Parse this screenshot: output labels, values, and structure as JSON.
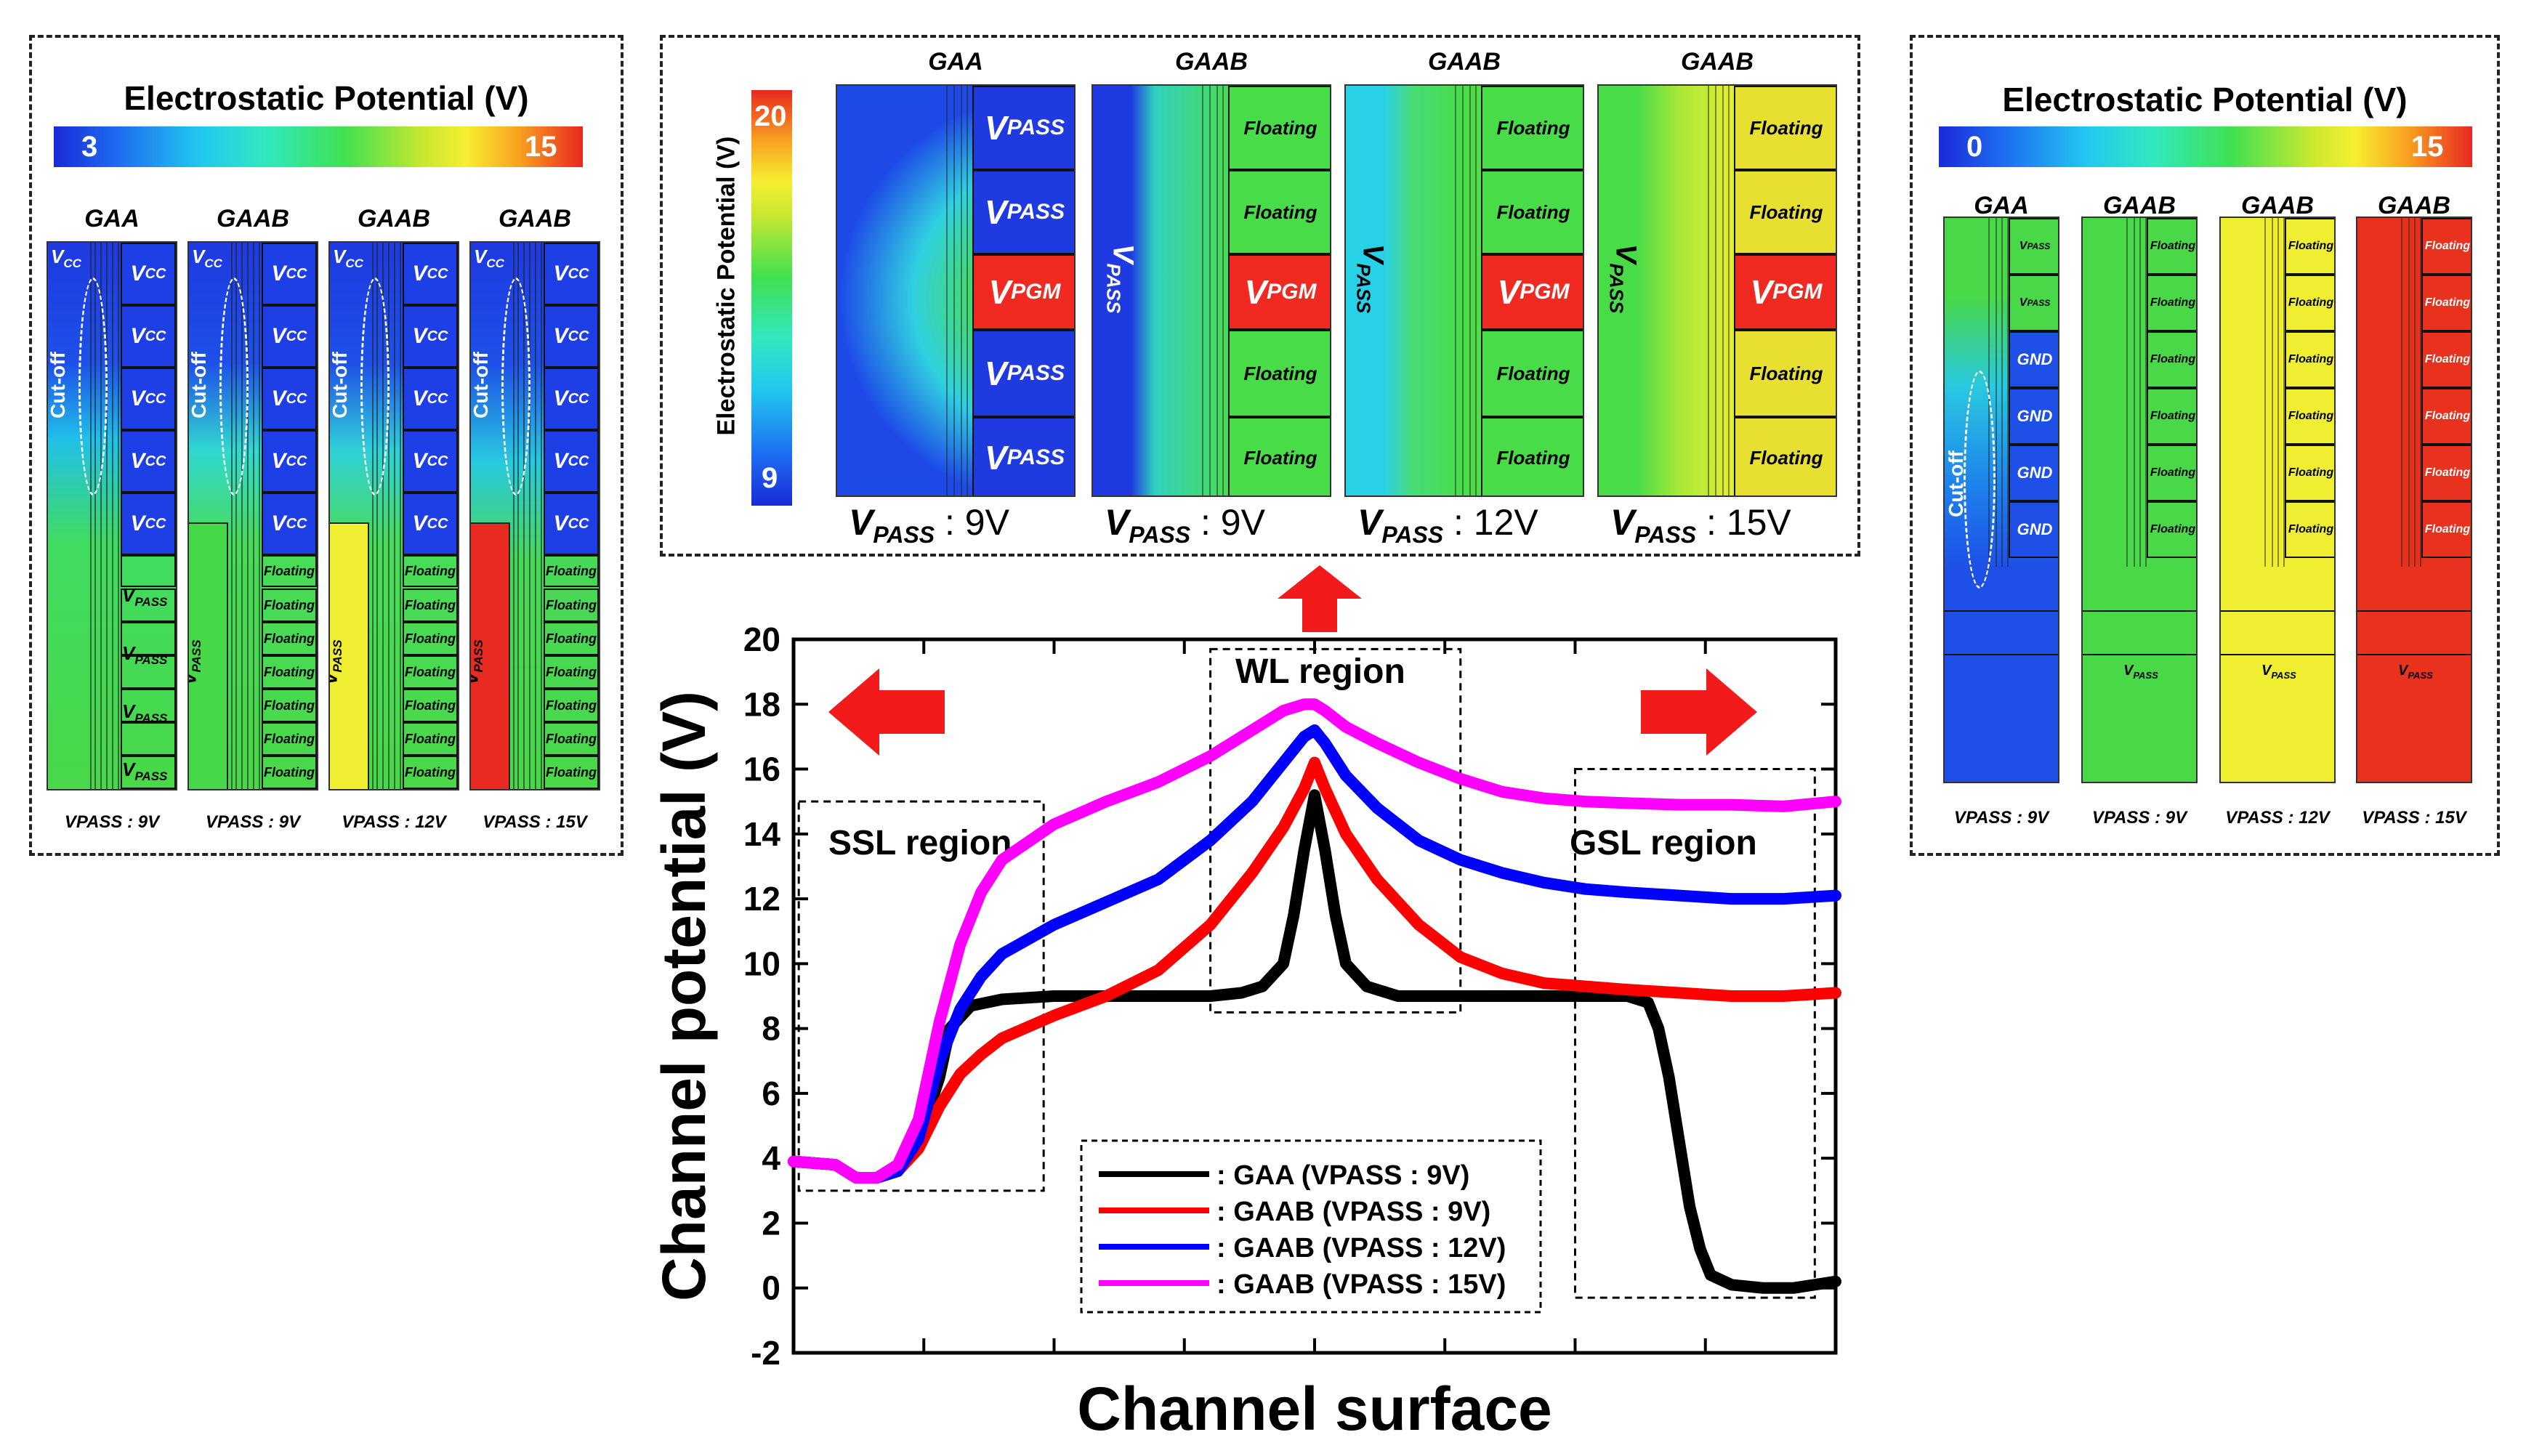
{
  "left_panel": {
    "title": "Electrostatic Potential (V)",
    "scale_min": "3",
    "scale_max": "15",
    "columns": [
      {
        "header": "GAA",
        "footer": "VPASS : 9V",
        "top_label": "VCC"
      },
      {
        "header": "GAAB",
        "footer": "VPASS : 9V",
        "top_label": "VCC"
      },
      {
        "header": "GAAB",
        "footer": "VPASS : 12V",
        "top_label": "VCC"
      },
      {
        "header": "GAAB",
        "footer": "VPASS : 15V",
        "top_label": "VCC"
      }
    ],
    "cutoff_label": "Cut-off",
    "vcc_label": "VCC",
    "vpass_label": "VPASS",
    "floating_label": "Floating"
  },
  "middle_panel": {
    "axis_title": "Electrostatic Potential (V)",
    "scale_max": "20",
    "scale_min": "9",
    "columns": [
      {
        "header": "GAA",
        "footer_v": "VPASS",
        "footer_val": " : 9V"
      },
      {
        "header": "GAAB",
        "footer_v": "VPASS",
        "footer_val": " : 9V"
      },
      {
        "header": "GAAB",
        "footer_v": "VPASS",
        "footer_val": " : 12V"
      },
      {
        "header": "GAAB",
        "footer_v": "VPASS",
        "footer_val": " : 15V"
      }
    ],
    "vpass_label": "VPASS",
    "vpgm_label": "VPGM",
    "floating_label": "Floating"
  },
  "right_panel": {
    "title": "Electrostatic Potential (V)",
    "scale_min": "0",
    "scale_max": "15",
    "columns": [
      {
        "header": "GAA",
        "footer": "VPASS : 9V"
      },
      {
        "header": "GAAB",
        "footer": "VPASS : 9V"
      },
      {
        "header": "GAAB",
        "footer": "VPASS : 12V"
      },
      {
        "header": "GAAB",
        "footer": "VPASS : 15V"
      }
    ],
    "vpass_label": "VPASS",
    "gnd_label": "GND",
    "floating_label": "Floating",
    "cutoff_label": "Cut-off"
  },
  "chart_data": {
    "type": "line",
    "title": "",
    "xlabel": "Channel surface",
    "ylabel": "Channel potential (V)",
    "xlim": [
      0,
      100
    ],
    "ylim": [
      -2,
      20
    ],
    "yticks": [
      "-2",
      "0",
      "2",
      "4",
      "6",
      "8",
      "10",
      "12",
      "14",
      "16",
      "18",
      "20"
    ],
    "regions": [
      {
        "label": "SSL region",
        "x0": 0.5,
        "x1": 24,
        "y0": 3,
        "y1": 15
      },
      {
        "label": "WL region",
        "x0": 40,
        "x1": 64,
        "y0": 8.5,
        "y1": 19.7
      },
      {
        "label": "GSL region",
        "x0": 75,
        "x1": 98,
        "y0": -0.3,
        "y1": 16
      }
    ],
    "series": [
      {
        "name": "GAA",
        "legend": ": GAA     (VPASS : 9V)",
        "color": "#000000",
        "x": [
          0,
          4,
          6,
          8,
          10,
          12,
          14,
          15,
          17,
          20,
          25,
          30,
          35,
          40,
          43,
          45,
          47,
          48,
          49,
          50,
          51,
          52,
          53,
          55,
          58,
          60,
          65,
          70,
          75,
          80,
          82,
          83,
          84,
          85,
          86,
          87,
          88,
          90,
          93,
          96,
          100
        ],
        "y": [
          3.9,
          3.8,
          3.4,
          3.4,
          3.6,
          4.5,
          6.5,
          8.0,
          8.7,
          8.9,
          9.0,
          9.0,
          9.0,
          9.0,
          9.1,
          9.3,
          10.0,
          11.5,
          13.5,
          15.2,
          13.5,
          11.5,
          10.0,
          9.3,
          9.0,
          9.0,
          9.0,
          9.0,
          9.0,
          9.0,
          8.8,
          8.0,
          6.5,
          4.5,
          2.5,
          1.2,
          0.4,
          0.1,
          0.0,
          0.0,
          0.2
        ]
      },
      {
        "name": "GAAB VPASS 9V",
        "legend": ": GAAB (VPASS : 9V)",
        "color": "#ff0000",
        "x": [
          0,
          4,
          6,
          8,
          10,
          12,
          14,
          16,
          18,
          20,
          25,
          30,
          35,
          40,
          44,
          47,
          49,
          50,
          51,
          53,
          56,
          60,
          64,
          68,
          72,
          76,
          80,
          85,
          90,
          95,
          100
        ],
        "y": [
          3.9,
          3.8,
          3.4,
          3.4,
          3.6,
          4.3,
          5.6,
          6.6,
          7.2,
          7.7,
          8.4,
          9.0,
          9.8,
          11.2,
          12.8,
          14.2,
          15.4,
          16.2,
          15.4,
          14.0,
          12.6,
          11.2,
          10.2,
          9.7,
          9.4,
          9.3,
          9.2,
          9.1,
          9.0,
          9.0,
          9.1
        ]
      },
      {
        "name": "GAAB VPASS 12V",
        "legend": ": GAAB (VPASS : 12V)",
        "color": "#0000ff",
        "x": [
          0,
          4,
          6,
          8,
          10,
          12,
          14,
          16,
          18,
          20,
          25,
          30,
          35,
          40,
          44,
          47,
          49,
          50,
          51,
          53,
          56,
          60,
          64,
          68,
          72,
          76,
          80,
          85,
          90,
          95,
          100
        ],
        "y": [
          3.9,
          3.8,
          3.4,
          3.4,
          3.6,
          4.6,
          7.0,
          8.6,
          9.6,
          10.3,
          11.2,
          11.9,
          12.6,
          13.8,
          15.0,
          16.2,
          17.0,
          17.2,
          16.8,
          15.8,
          14.8,
          13.8,
          13.2,
          12.8,
          12.5,
          12.3,
          12.2,
          12.1,
          12.0,
          12.0,
          12.1
        ]
      },
      {
        "name": "GAAB VPASS 15V",
        "legend": ": GAAB (VPASS : 15V)",
        "color": "#ff00ff",
        "x": [
          0,
          4,
          6,
          8,
          10,
          12,
          14,
          16,
          18,
          20,
          25,
          30,
          35,
          40,
          44,
          47,
          49,
          50,
          51,
          53,
          56,
          60,
          64,
          68,
          72,
          76,
          80,
          85,
          90,
          95,
          100
        ],
        "y": [
          3.9,
          3.8,
          3.4,
          3.4,
          3.8,
          5.2,
          8.2,
          10.6,
          12.2,
          13.2,
          14.3,
          15.0,
          15.6,
          16.4,
          17.2,
          17.8,
          18.0,
          18.0,
          17.8,
          17.3,
          16.8,
          16.2,
          15.7,
          15.3,
          15.1,
          15.0,
          14.95,
          14.9,
          14.9,
          14.85,
          15.0
        ]
      }
    ]
  }
}
